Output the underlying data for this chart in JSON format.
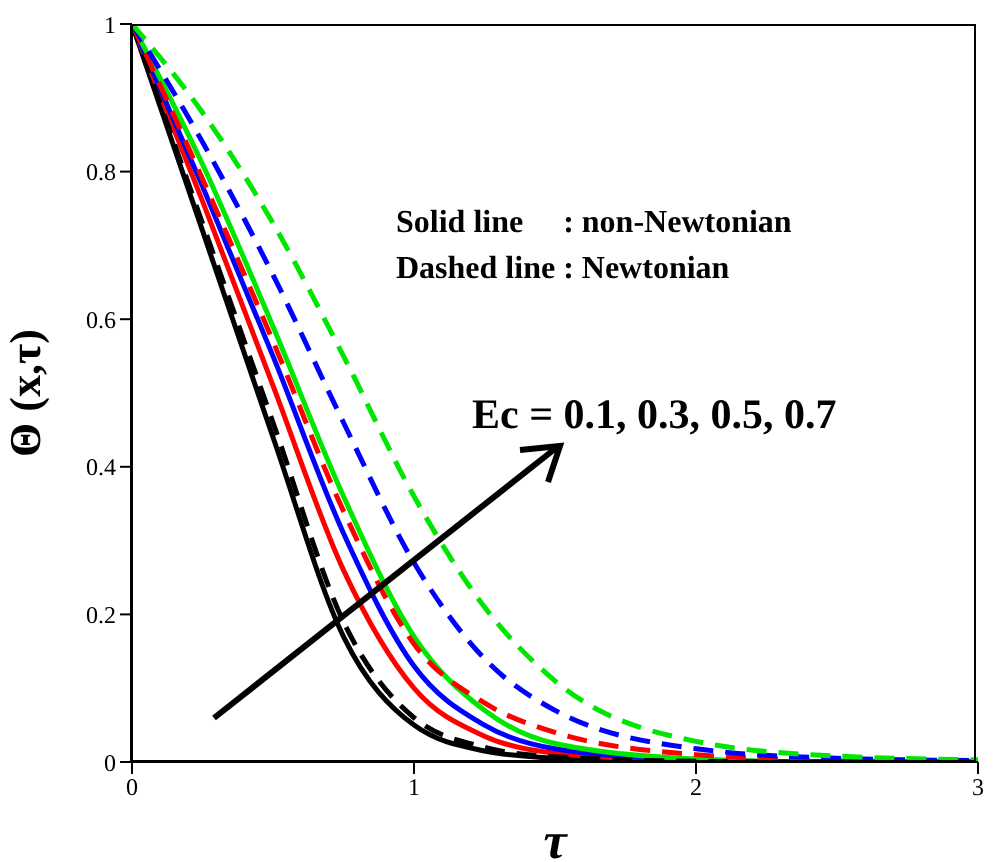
{
  "chart_data": {
    "type": "line",
    "xlabel": "τ",
    "ylabel": "Θ (x,τ)",
    "x": [
      0,
      0.25,
      0.5,
      0.75,
      1,
      1.25,
      1.5,
      2,
      2.5,
      3
    ],
    "series": [
      {
        "color": "#000000",
        "line_style": "solid",
        "values": [
          1,
          0.72,
          0.44,
          0.17,
          0.05,
          0.015,
          0.005,
          0,
          0,
          0
        ]
      },
      {
        "color": "#ff0000",
        "line_style": "solid",
        "values": [
          1,
          0.76,
          0.51,
          0.26,
          0.1,
          0.035,
          0.012,
          0.002,
          0,
          0
        ]
      },
      {
        "color": "#0000ff",
        "line_style": "solid",
        "values": [
          1,
          0.78,
          0.55,
          0.31,
          0.13,
          0.05,
          0.018,
          0.003,
          0,
          0
        ]
      },
      {
        "color": "#00e600",
        "line_style": "solid",
        "values": [
          1,
          0.81,
          0.59,
          0.36,
          0.17,
          0.07,
          0.025,
          0.004,
          0,
          0
        ]
      },
      {
        "color": "#000000",
        "line_style": "dashed",
        "values": [
          1,
          0.73,
          0.46,
          0.19,
          0.06,
          0.02,
          0.007,
          0.001,
          0,
          0
        ]
      },
      {
        "color": "#ff0000",
        "line_style": "dashed",
        "values": [
          1,
          0.79,
          0.57,
          0.34,
          0.16,
          0.08,
          0.04,
          0.01,
          0.002,
          0
        ]
      },
      {
        "color": "#0000ff",
        "line_style": "dashed",
        "values": [
          1,
          0.84,
          0.66,
          0.46,
          0.27,
          0.14,
          0.07,
          0.018,
          0.005,
          0.002
        ]
      },
      {
        "color": "#00e600",
        "line_style": "dashed",
        "values": [
          1,
          0.88,
          0.73,
          0.55,
          0.36,
          0.21,
          0.11,
          0.028,
          0.008,
          0.003
        ]
      }
    ],
    "xlim": [
      0,
      3
    ],
    "xticks": [
      0,
      1,
      2,
      3
    ],
    "ylim": [
      0,
      1
    ],
    "yticks": [
      0,
      0.2,
      0.4,
      0.6,
      0.8,
      1
    ],
    "grid": false,
    "marker": "none",
    "annotations": [
      "Solid line     : non-Newtonian",
      "Dashed line : Newtonian",
      "Ec = 0.1, 0.3, 0.5, 0.7"
    ]
  }
}
